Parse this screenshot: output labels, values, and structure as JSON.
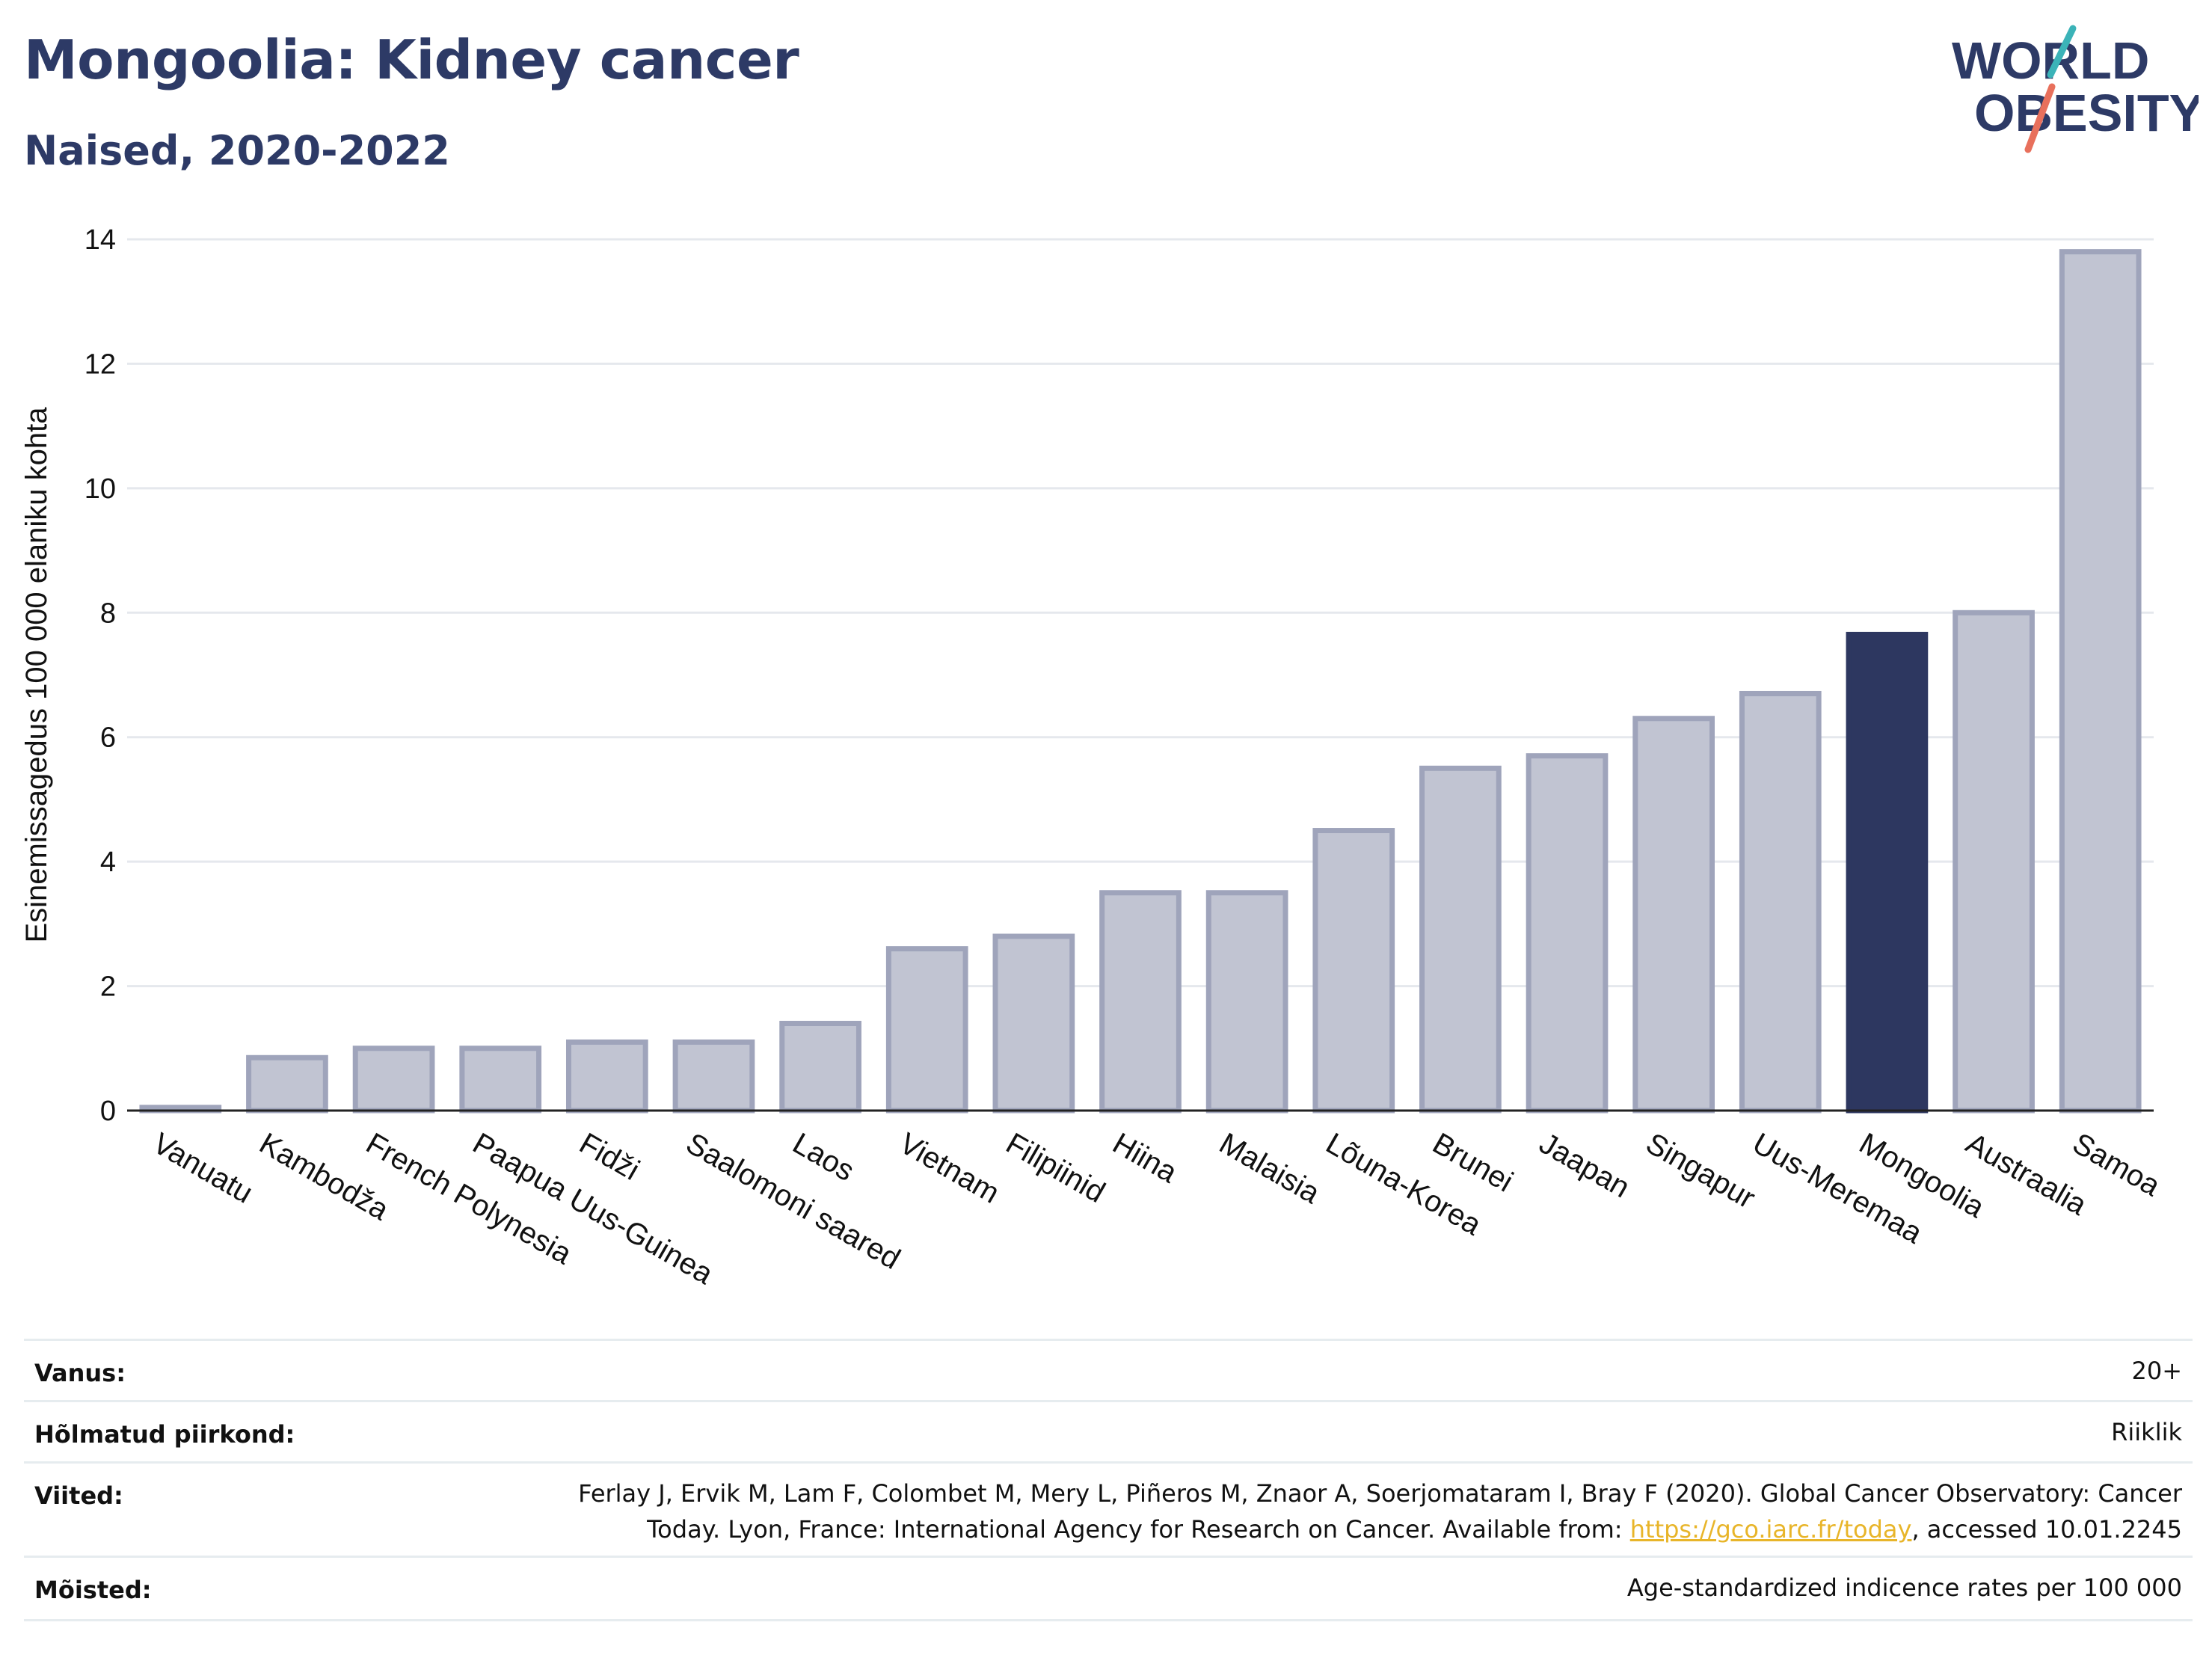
{
  "header": {
    "title": "Mongoolia: Kidney cancer",
    "subtitle": "Naised, 2020-2022"
  },
  "logo": {
    "line1": "WORLD",
    "line2": "OBESITY"
  },
  "chart_data": {
    "type": "bar",
    "ylabel": "Esinemissagedus 100 000 elaniku kohta",
    "xlabel": "",
    "ylim": [
      0,
      14
    ],
    "yticks": [
      0,
      2,
      4,
      6,
      8,
      10,
      12,
      14
    ],
    "grid": true,
    "categories": [
      "Vanuatu",
      "Kambodža",
      "French Polynesia",
      "Paapua Uus-Guinea",
      "Fidži",
      "Saalomoni saared",
      "Laos",
      "Vietnam",
      "Filipiinid",
      "Hiina",
      "Malaisia",
      "Lõuna-Korea",
      "Brunei",
      "Jaapan",
      "Singapur",
      "Uus-Meremaa",
      "Mongoolia",
      "Austraalia",
      "Samoa"
    ],
    "values": [
      0.05,
      0.85,
      1.0,
      1.0,
      1.1,
      1.1,
      1.4,
      2.6,
      2.8,
      3.5,
      3.5,
      4.5,
      5.5,
      5.7,
      6.3,
      6.7,
      7.65,
      8.0,
      13.8
    ],
    "highlight": "Mongoolia",
    "colors": {
      "bar": "#c1c4d2",
      "bar_border": "#9fa4bb",
      "highlight": "#2d3760",
      "grid": "#e5e8ed",
      "axis": "#222222"
    }
  },
  "meta": {
    "age_label": "Vanus:",
    "age_value": "20+",
    "coverage_label": "Hõlmatud piirkond:",
    "coverage_value": "Riiklik",
    "refs_label": "Viited:",
    "refs_line1": "Ferlay J, Ervik M, Lam F, Colombet M, Mery L, Piñeros M, Znaor A, Soerjomataram I, Bray F (2020). Global Cancer Observatory: Cancer",
    "refs_line2_pre": "Today. Lyon, France: International Agency for Research on Cancer. Available from: ",
    "refs_link": "https://gco.iarc.fr/today",
    "refs_line2_post": ", accessed 10.01.2245",
    "defs_label": "Mõisted:",
    "defs_value": "Age-standardized indicence rates per 100 000"
  }
}
